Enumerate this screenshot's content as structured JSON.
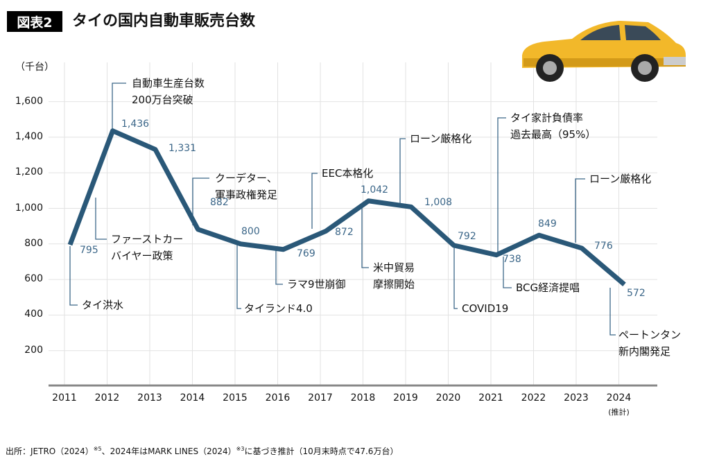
{
  "header": {
    "badge": "図表2",
    "title": "タイの国内自動車販売台数"
  },
  "footnote": {
    "pre": "出所：JETRO（2024）",
    "sup1": "※5",
    "mid": "、2024年はMARK LINES（2024）",
    "sup2": "※3",
    "post": "に基づき推計（10月末時点で47.6万台）"
  },
  "colors": {
    "line": "#2a5878",
    "value_label": "#3b6688",
    "leader": "#3b6688",
    "grid": "#e2e2e2",
    "axis": "#888888",
    "car": "#f2b82a"
  },
  "chart_data": {
    "type": "line",
    "ylabel": "（千台）",
    "ylim": [
      0,
      1800
    ],
    "yticks": [
      200,
      400,
      600,
      800,
      1000,
      1200,
      1400,
      1600
    ],
    "ytick_labels": [
      "200",
      "400",
      "600",
      "800",
      "1,000",
      "1,200",
      "1,400",
      "1,600"
    ],
    "categories": [
      "2011",
      "2012",
      "2013",
      "2014",
      "2015",
      "2016",
      "2017",
      "2018",
      "2019",
      "2020",
      "2021",
      "2022",
      "2023",
      "2024"
    ],
    "category_sub": {
      "2024": "(推計)"
    },
    "values": [
      795,
      1436,
      1331,
      882,
      800,
      769,
      872,
      1042,
      1008,
      792,
      738,
      849,
      776,
      572
    ],
    "value_labels": [
      "795",
      "1,436",
      "1,331",
      "882",
      "800",
      "769",
      "872",
      "1,042",
      "1,008",
      "792",
      "738",
      "849",
      "776",
      "572"
    ],
    "grid": "vertical",
    "annotations": [
      {
        "lines": [
          "タイ洪水"
        ]
      },
      {
        "lines": [
          "ファーストカー",
          "バイヤー政策"
        ]
      },
      {
        "lines": [
          "自動車生産台数",
          "200万台突破"
        ]
      },
      {
        "lines": [
          "クーデター、",
          "軍事政権発足"
        ]
      },
      {
        "lines": [
          "タイランド4.0"
        ]
      },
      {
        "lines": [
          "ラマ9世崩御"
        ]
      },
      {
        "lines": [
          "EEC本格化"
        ]
      },
      {
        "lines": [
          "米中貿易",
          "摩擦開始"
        ]
      },
      {
        "lines": [
          "ローン厳格化"
        ]
      },
      {
        "lines": [
          "COVID19"
        ]
      },
      {
        "lines": [
          "タイ家計負債率",
          "過去最高（95%）"
        ]
      },
      {
        "lines": [
          "BCG経済提唱"
        ]
      },
      {
        "lines": [
          "ローン厳格化"
        ]
      },
      {
        "lines": [
          "ペートンタン",
          "新内閣発足"
        ]
      }
    ]
  }
}
